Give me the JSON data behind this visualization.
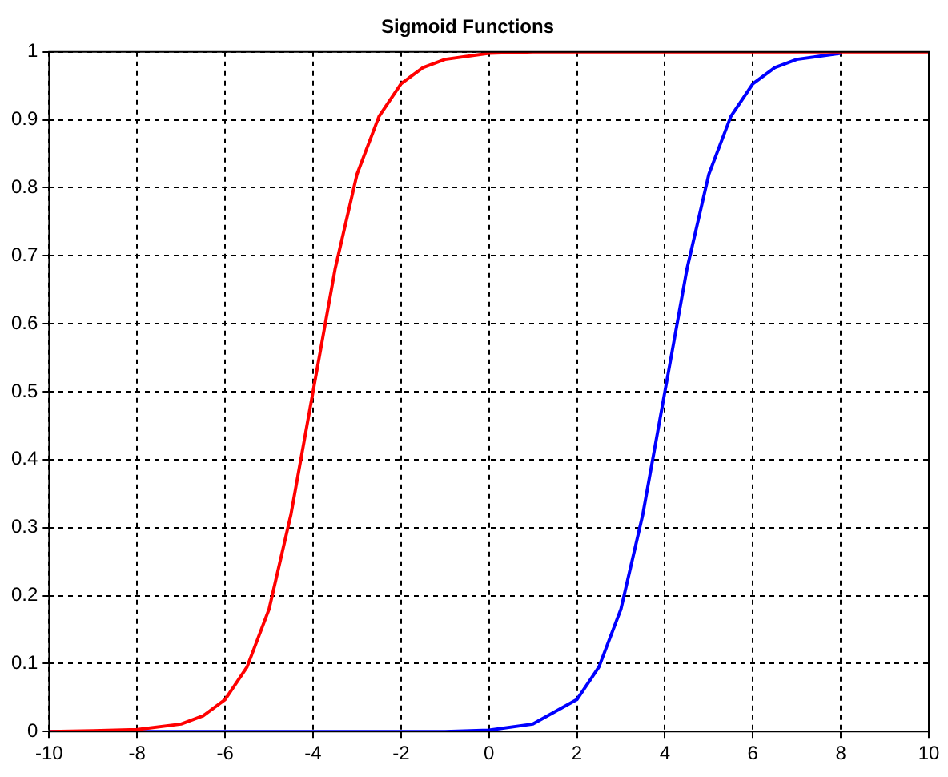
{
  "chart_data": {
    "type": "line",
    "title": "Sigmoid Functions",
    "x": [
      -10,
      -9,
      -8,
      -7,
      -6.5,
      -6,
      -5.5,
      -5,
      -4.5,
      -4,
      -3.5,
      -3,
      -2.5,
      -2,
      -1.5,
      -1,
      0,
      1,
      2,
      2.5,
      3,
      3.5,
      4,
      4.5,
      5,
      5.5,
      6,
      6.5,
      7,
      8,
      9,
      10
    ],
    "series": [
      {
        "color": "#ff0000",
        "values": [
          0,
          0.001,
          0.003,
          0.011,
          0.023,
          0.047,
          0.095,
          0.18,
          0.32,
          0.5,
          0.68,
          0.82,
          0.905,
          0.953,
          0.977,
          0.989,
          0.998,
          1,
          1,
          1,
          1,
          1,
          1,
          1,
          1,
          1,
          1,
          1,
          1,
          1,
          1,
          1
        ]
      },
      {
        "color": "#0000ff",
        "values": [
          0,
          0,
          0,
          0,
          0,
          0,
          0,
          0,
          0,
          0,
          0,
          0,
          0,
          0,
          0,
          0,
          0.002,
          0.011,
          0.047,
          0.095,
          0.18,
          0.32,
          0.5,
          0.68,
          0.82,
          0.905,
          0.953,
          0.977,
          0.989,
          0.998,
          null,
          null
        ]
      }
    ],
    "xlim": [
      -10,
      10
    ],
    "ylim": [
      0,
      1
    ],
    "xticks": [
      -10,
      -8,
      -6,
      -4,
      -2,
      0,
      2,
      4,
      6,
      8,
      10
    ],
    "yticks": [
      0,
      0.1,
      0.2,
      0.3,
      0.4,
      0.5,
      0.6,
      0.7,
      0.8,
      0.9,
      1
    ],
    "grid": true
  }
}
